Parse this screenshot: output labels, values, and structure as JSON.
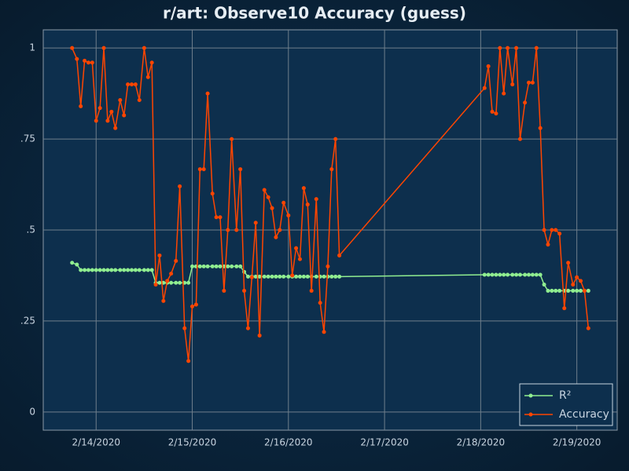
{
  "chart_data": {
    "type": "line",
    "title": "r/art: Observe10 Accuracy (guess)",
    "x": [
      13.75,
      13.8,
      13.84,
      13.88,
      13.92,
      13.96,
      14.0,
      14.04,
      14.08,
      14.12,
      14.16,
      14.2,
      14.25,
      14.29,
      14.33,
      14.37,
      14.41,
      14.45,
      14.5,
      14.54,
      14.58,
      14.62,
      14.66,
      14.7,
      14.74,
      14.78,
      14.83,
      14.87,
      14.92,
      14.96,
      15.0,
      15.04,
      15.08,
      15.12,
      15.16,
      15.21,
      15.25,
      15.29,
      15.33,
      15.37,
      15.41,
      15.46,
      15.5,
      15.54,
      15.58,
      15.62,
      15.66,
      15.7,
      15.75,
      15.79,
      15.83,
      15.87,
      15.91,
      15.95,
      16.0,
      16.04,
      16.08,
      16.12,
      16.16,
      16.2,
      16.24,
      16.29,
      16.33,
      16.37,
      16.41,
      16.45,
      16.49,
      16.53,
      18.04,
      18.08,
      18.12,
      18.16,
      18.2,
      18.24,
      18.28,
      18.33,
      18.37,
      18.41,
      18.46,
      18.5,
      18.54,
      18.58,
      18.62,
      18.66,
      18.7,
      18.74,
      18.78,
      18.82,
      18.87,
      18.91,
      18.96,
      19.0,
      19.04,
      19.08,
      19.12
    ],
    "series": [
      {
        "name": "R²",
        "color": "#90ee90",
        "values": [
          0.41,
          0.405,
          0.39,
          0.39,
          0.39,
          0.39,
          0.39,
          0.39,
          0.39,
          0.39,
          0.39,
          0.39,
          0.39,
          0.39,
          0.39,
          0.39,
          0.39,
          0.39,
          0.39,
          0.39,
          0.39,
          0.355,
          0.355,
          0.355,
          0.355,
          0.355,
          0.355,
          0.355,
          0.355,
          0.355,
          0.4,
          0.4,
          0.4,
          0.4,
          0.4,
          0.4,
          0.4,
          0.4,
          0.4,
          0.4,
          0.4,
          0.4,
          0.4,
          0.385,
          0.372,
          0.372,
          0.372,
          0.372,
          0.372,
          0.372,
          0.372,
          0.372,
          0.372,
          0.372,
          0.372,
          0.372,
          0.372,
          0.372,
          0.372,
          0.372,
          0.372,
          0.372,
          0.372,
          0.372,
          0.372,
          0.372,
          0.372,
          0.372,
          0.377,
          0.377,
          0.377,
          0.377,
          0.377,
          0.377,
          0.377,
          0.377,
          0.377,
          0.377,
          0.377,
          0.377,
          0.377,
          0.377,
          0.377,
          0.35,
          0.333,
          0.333,
          0.333,
          0.333,
          0.333,
          0.333,
          0.333,
          0.333,
          0.333,
          0.333,
          0.333
        ]
      },
      {
        "name": "Accuracy",
        "color": "#ff4500",
        "values": [
          1.0,
          0.97,
          0.84,
          0.965,
          0.96,
          0.96,
          0.8,
          0.835,
          1.0,
          0.8,
          0.825,
          0.78,
          0.857,
          0.815,
          0.9,
          0.9,
          0.9,
          0.857,
          1.0,
          0.92,
          0.96,
          0.35,
          0.43,
          0.305,
          0.36,
          0.38,
          0.415,
          0.62,
          0.23,
          0.14,
          0.29,
          0.295,
          0.667,
          0.667,
          0.875,
          0.6,
          0.535,
          0.535,
          0.333,
          0.5,
          0.75,
          0.5,
          0.667,
          0.333,
          0.23,
          0.37,
          0.52,
          0.21,
          0.61,
          0.59,
          0.56,
          0.48,
          0.5,
          0.575,
          0.54,
          0.375,
          0.45,
          0.42,
          0.615,
          0.57,
          0.333,
          0.585,
          0.3,
          0.22,
          0.4,
          0.667,
          0.75,
          0.43,
          0.89,
          0.95,
          0.825,
          0.82,
          1.0,
          0.875,
          1.0,
          0.9,
          1.0,
          0.75,
          0.85,
          0.905,
          0.905,
          1.0,
          0.78,
          0.5,
          0.46,
          0.5,
          0.5,
          0.49,
          0.285,
          0.41,
          0.35,
          0.37,
          0.36,
          0.333,
          0.23
        ]
      }
    ],
    "xlim": [
      13.45,
      19.42
    ],
    "xticks": [
      {
        "value": 14,
        "label": "2/14/2020"
      },
      {
        "value": 15,
        "label": "2/15/2020"
      },
      {
        "value": 16,
        "label": "2/16/2020"
      },
      {
        "value": 17,
        "label": "2/17/2020"
      },
      {
        "value": 18,
        "label": "2/18/2020"
      },
      {
        "value": 19,
        "label": "2/19/2020"
      }
    ],
    "ylim": [
      -0.05,
      1.05
    ],
    "yticks": [
      0,
      {
        "value": 0.25,
        "label": ".25"
      },
      {
        "value": 0.5,
        "label": ".5"
      },
      {
        "value": 0.75,
        "label": ".75"
      },
      1
    ],
    "grid": true,
    "legend": "bottom-right"
  }
}
